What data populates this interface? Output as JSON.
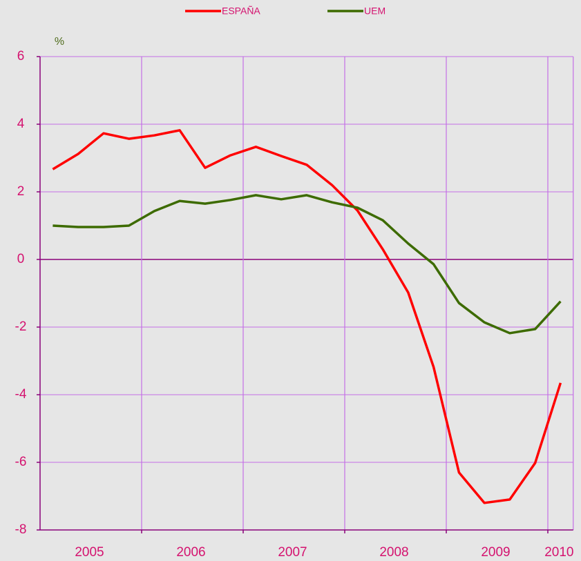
{
  "chart_data": {
    "type": "line",
    "y_unit_label": "%",
    "categories": [
      "2005",
      null,
      null,
      null,
      "2006",
      null,
      null,
      null,
      "2007",
      null,
      null,
      null,
      "2008",
      null,
      null,
      null,
      "2009",
      null,
      null,
      null,
      "2010"
    ],
    "series": [
      {
        "name": "ESPAÑA",
        "color": "#ff0000",
        "values": [
          2.67,
          3.12,
          3.73,
          3.57,
          3.67,
          3.82,
          2.71,
          3.08,
          3.33,
          3.06,
          2.8,
          2.2,
          1.45,
          0.3,
          -0.98,
          -3.18,
          -6.3,
          -7.2,
          -7.1,
          -6.02,
          -3.65
        ]
      },
      {
        "name": "UEM",
        "color": "#3d6b00",
        "values": [
          1.0,
          0.96,
          0.96,
          1.0,
          1.43,
          1.73,
          1.65,
          1.76,
          1.9,
          1.78,
          1.9,
          1.69,
          1.53,
          1.16,
          0.47,
          -0.14,
          -1.29,
          -1.86,
          -2.18,
          -2.06,
          -1.24
        ]
      }
    ],
    "ylim": [
      -8,
      6
    ],
    "yticks": [
      -8,
      -6,
      -4,
      -2,
      0,
      2,
      4,
      6
    ],
    "grid": true,
    "legend": "top"
  }
}
